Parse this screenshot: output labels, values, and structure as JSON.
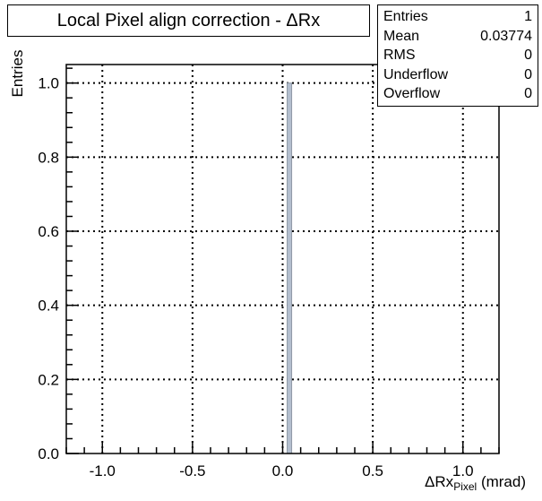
{
  "title": "Local Pixel align correction - ΔRx",
  "stats": [
    {
      "label": "Entries",
      "value": "1"
    },
    {
      "label": "Mean",
      "value": "0.03774"
    },
    {
      "label": "RMS",
      "value": "0"
    },
    {
      "label": "Underflow",
      "value": "0"
    },
    {
      "label": "Overflow",
      "value": "0"
    }
  ],
  "chart_data": {
    "type": "bar",
    "title": "Local Pixel align correction - ΔRx",
    "xlabel": "ΔRx",
    "xlabel_subscript": "Pixel",
    "xlabel_unit": "(mrad)",
    "ylabel": "Entries",
    "xlim": [
      -1.2,
      1.2
    ],
    "ylim": [
      0,
      1.05
    ],
    "xticks": [
      -1.0,
      -0.5,
      0.0,
      0.5,
      1.0
    ],
    "xtick_labels": [
      "-1.0",
      "-0.5",
      "0.0",
      "0.5",
      "1.0"
    ],
    "yticks": [
      0.0,
      0.2,
      0.4,
      0.6,
      0.8,
      1.0
    ],
    "ytick_labels": [
      "0.0",
      "0.2",
      "0.4",
      "0.6",
      "0.8",
      "1.0"
    ],
    "grid": true,
    "bins": [
      {
        "x_low": 0.025,
        "x_high": 0.05,
        "value": 1
      }
    ],
    "bar_color": "#b4bfcf",
    "bar_edge_color": "#8f99a6"
  }
}
